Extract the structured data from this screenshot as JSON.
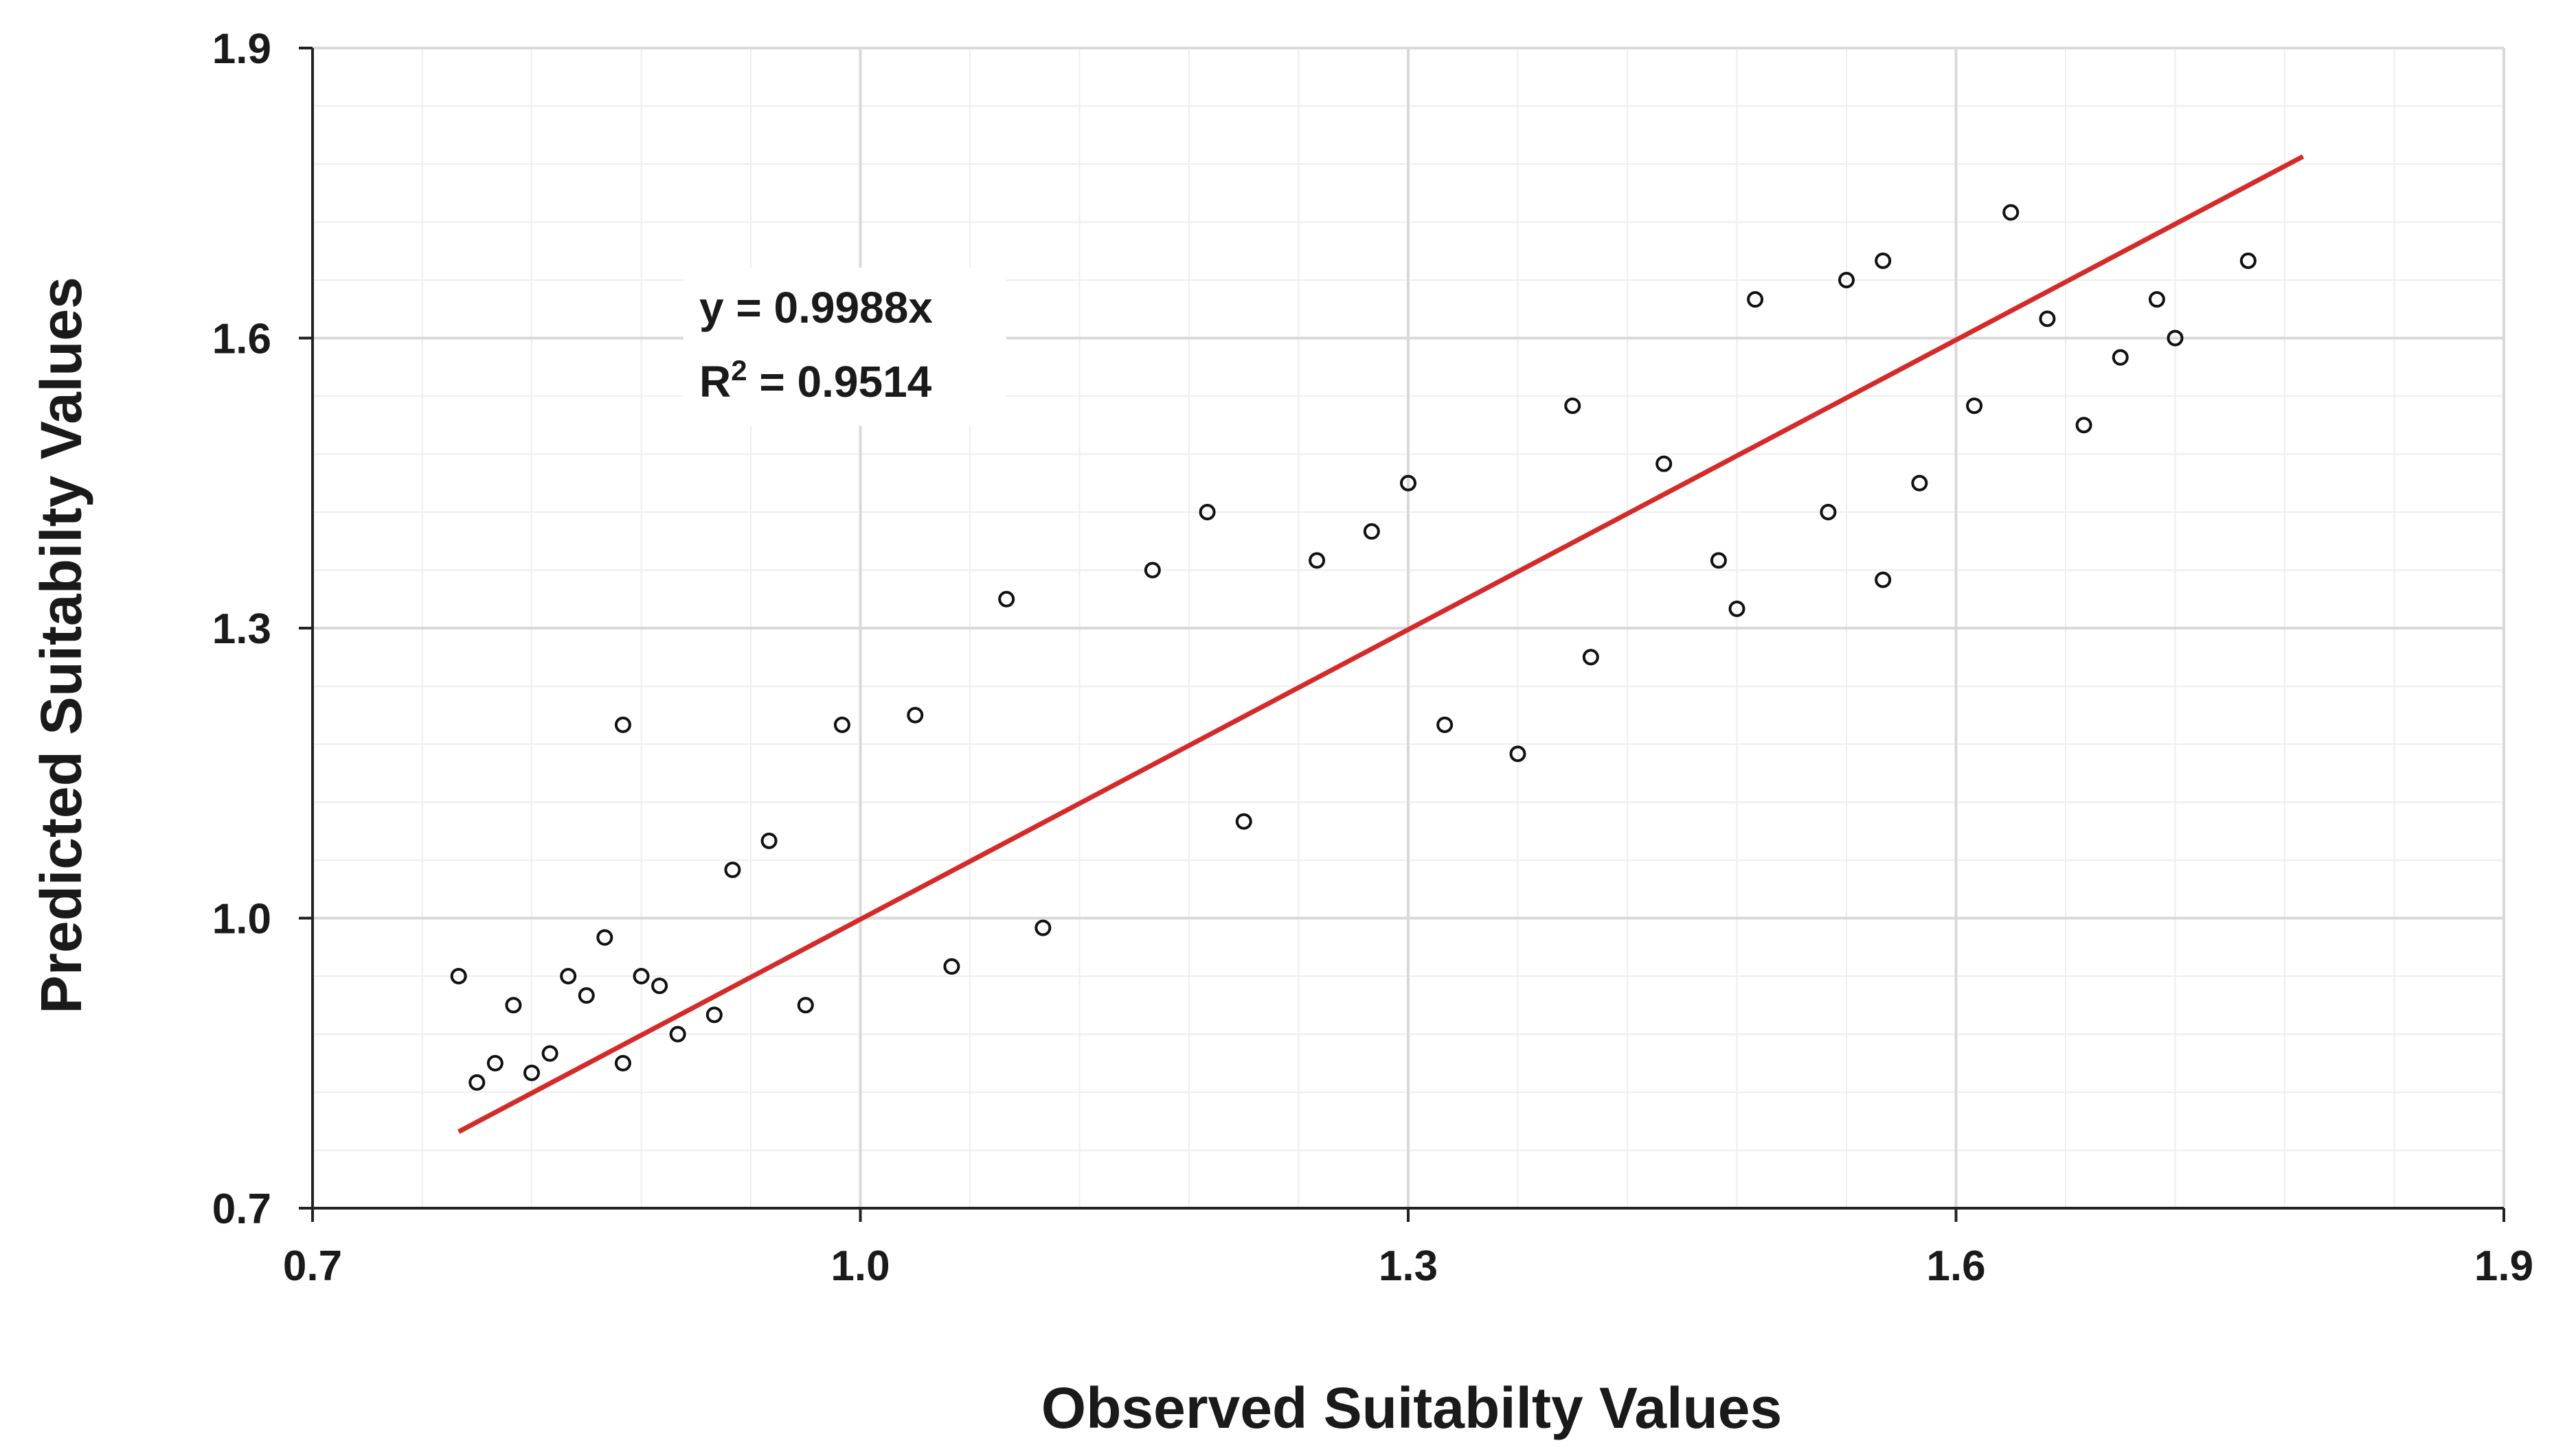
{
  "chart_data": {
    "type": "scatter",
    "title": "",
    "xlabel": "Observed Suitabilty Values",
    "ylabel": "Predicted Suitabilty Values",
    "xlim": [
      0.7,
      1.9
    ],
    "ylim": [
      0.7,
      1.9
    ],
    "xticks": [
      "0.7",
      "1.0",
      "1.3",
      "1.6",
      "1.9"
    ],
    "yticks": [
      "0.7",
      "1.0",
      "1.3",
      "1.6",
      "1.9"
    ],
    "grid": true,
    "minor_grid": true,
    "marker": "open-circle",
    "colors": {
      "points": "#111111",
      "trendline": "#d42a2a",
      "grid_major": "#d9d9d9",
      "grid_minor": "#eeeeee",
      "axis": "#222222"
    },
    "trendline": {
      "slope": 0.9988,
      "intercept": 0,
      "x_range": [
        0.78,
        1.79
      ]
    },
    "annotation": {
      "equation": "y = 0.9988x",
      "r2_prefix": "R",
      "r2_sup": "2",
      "r2_value": " = 0.9514"
    },
    "series": [
      {
        "points": [
          [
            0.78,
            0.94
          ],
          [
            0.79,
            0.83
          ],
          [
            0.8,
            0.85
          ],
          [
            0.81,
            0.91
          ],
          [
            0.82,
            0.84
          ],
          [
            0.83,
            0.86
          ],
          [
            0.84,
            0.94
          ],
          [
            0.85,
            0.92
          ],
          [
            0.86,
            0.98
          ],
          [
            0.87,
            0.85
          ],
          [
            0.88,
            0.94
          ],
          [
            0.89,
            0.93
          ],
          [
            0.87,
            1.2
          ],
          [
            0.9,
            0.88
          ],
          [
            0.92,
            0.9
          ],
          [
            0.93,
            1.05
          ],
          [
            0.95,
            1.08
          ],
          [
            0.97,
            0.91
          ],
          [
            0.99,
            1.2
          ],
          [
            1.03,
            1.21
          ],
          [
            1.05,
            0.95
          ],
          [
            1.08,
            1.33
          ],
          [
            1.1,
            0.99
          ],
          [
            1.16,
            1.36
          ],
          [
            1.19,
            1.42
          ],
          [
            1.21,
            1.1
          ],
          [
            1.25,
            1.37
          ],
          [
            1.28,
            1.4
          ],
          [
            1.3,
            1.45
          ],
          [
            1.32,
            1.2
          ],
          [
            1.36,
            1.17
          ],
          [
            1.39,
            1.53
          ],
          [
            1.4,
            1.27
          ],
          [
            1.44,
            1.47
          ],
          [
            1.47,
            1.37
          ],
          [
            1.48,
            1.32
          ],
          [
            1.49,
            1.64
          ],
          [
            1.53,
            1.42
          ],
          [
            1.54,
            1.66
          ],
          [
            1.56,
            1.68
          ],
          [
            1.56,
            1.35
          ],
          [
            1.58,
            1.45
          ],
          [
            1.61,
            1.53
          ],
          [
            1.63,
            1.73
          ],
          [
            1.65,
            1.62
          ],
          [
            1.67,
            1.51
          ],
          [
            1.69,
            1.58
          ],
          [
            1.71,
            1.64
          ],
          [
            1.72,
            1.6
          ],
          [
            1.76,
            1.68
          ]
        ]
      }
    ]
  }
}
